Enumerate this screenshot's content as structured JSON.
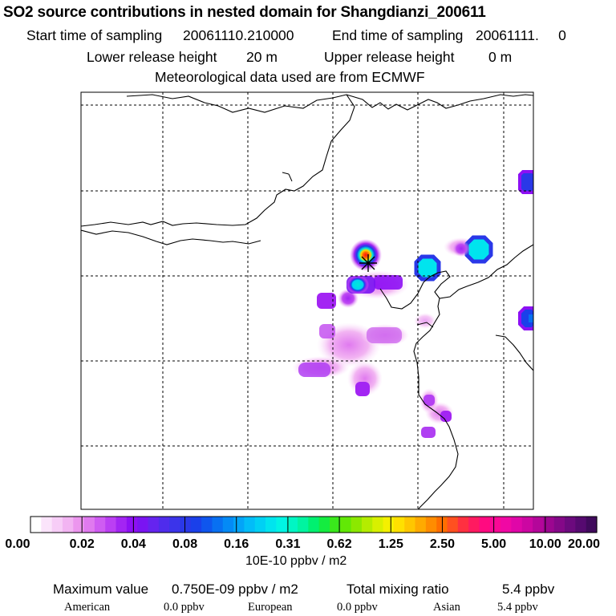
{
  "header": {
    "title": "SO2 source contributions in nested domain for Shangdianzi_200611",
    "start_label": "Start time of sampling",
    "start_value": "20061110.210000",
    "end_label": "End time of sampling",
    "end_value": "20061111.     0",
    "lower_label": "Lower release height",
    "lower_value": "20 m",
    "upper_label": "Upper release height",
    "upper_value": "0 m",
    "met_line": "Meteorological data used are from ECMWF"
  },
  "chart_data": {
    "type": "heatmap",
    "title": "SO2 source contributions in nested domain for Shangdianzi_200611",
    "colorbar": {
      "tick_labels": [
        "0.00",
        "0.02",
        "0.04",
        "0.08",
        "0.16",
        "0.31",
        "0.62",
        "1.25",
        "2.50",
        "5.00",
        "10.00",
        "20.00"
      ],
      "units": "10E-10 ppbv / m2",
      "colors": [
        "#ffffff",
        "#fbe4fb",
        "#f7cdf7",
        "#f2b4f2",
        "#ec96ee",
        "#e07aef",
        "#cf5cf2",
        "#bb3ff3",
        "#a325f3",
        "#8d10f4",
        "#7a14f2",
        "#6524ef",
        "#4f2cec",
        "#3b34ea",
        "#2a38e8",
        "#1a40ea",
        "#0f56ee",
        "#0870f2",
        "#048af6",
        "#03a4f8",
        "#02bcf8",
        "#00d0f4",
        "#00e4ee",
        "#00f4e4",
        "#00f6c4",
        "#00f4a0",
        "#00f070",
        "#14ec40",
        "#3ae81c",
        "#62e806",
        "#8ce800",
        "#b4ec00",
        "#d8f000",
        "#f4f000",
        "#ffe000",
        "#ffc600",
        "#ffaa00",
        "#ff8c00",
        "#ff6e00",
        "#ff5020",
        "#ff3040",
        "#ff1a60",
        "#ff0a80",
        "#fa0896",
        "#f008a4",
        "#e006a8",
        "#cc06a2",
        "#b4069a",
        "#9c0690",
        "#840888",
        "#6c0a7e",
        "#560a70",
        "#400a5c"
      ]
    },
    "receptor": "Shangdianzi",
    "hotspots": [
      {
        "name": "source-near-receptor",
        "level": 1.0
      },
      {
        "name": "source-east-1",
        "level": 0.3
      },
      {
        "name": "source-east-2",
        "level": 0.33
      },
      {
        "name": "source-northeast-edge",
        "level": 0.18
      },
      {
        "name": "source-east-edge",
        "level": 0.18
      }
    ]
  },
  "stats": {
    "max_label": "Maximum value",
    "max_value": "0.750E-09 ppbv / m2",
    "total_label": "Total mixing ratio",
    "total_value": "5.4 ppbv",
    "american_label": "American",
    "american_value": "0.0 ppbv",
    "european_label": "European",
    "european_value": "0.0 ppbv",
    "asian_label": "Asian",
    "asian_value": "5.4 ppbv"
  }
}
